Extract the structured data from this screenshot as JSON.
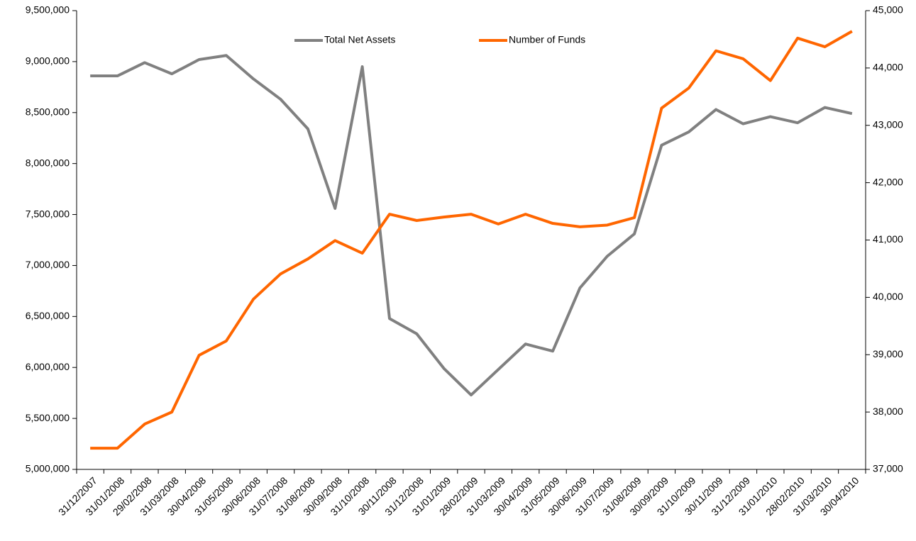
{
  "chart_data": {
    "type": "line",
    "categories": [
      "31/12/2007",
      "31/01/2008",
      "29/02/2008",
      "31/03/2008",
      "30/04/2008",
      "31/05/2008",
      "30/06/2008",
      "31/07/2008",
      "31/08/2008",
      "30/09/2008",
      "31/10/2008",
      "30/11/2008",
      "31/12/2008",
      "31/01/2009",
      "28/02/2009",
      "31/03/2009",
      "30/04/2009",
      "31/05/2009",
      "30/06/2009",
      "31/07/2009",
      "31/08/2009",
      "30/09/2009",
      "31/10/2009",
      "30/11/2009",
      "31/12/2009",
      "31/01/2010",
      "28/02/2010",
      "31/03/2010",
      "30/04/2010"
    ],
    "series": [
      {
        "name": "Total Net Assets",
        "color": "#808080",
        "values": [
          8860000,
          8860000,
          8990000,
          8880000,
          9020000,
          9060000,
          8830000,
          8630000,
          8340000,
          7560000,
          8950000,
          6480000,
          6330000,
          5990000,
          5730000,
          5980000,
          6230000,
          6160000,
          6780000,
          7090000,
          7310000,
          8180000,
          8310000,
          8530000,
          8390000,
          8460000,
          8400000,
          8550000,
          8490000
        ]
      },
      {
        "name": "Number of Funds",
        "color": "#ff6600",
        "axis": "y2",
        "values": [
          37370,
          37370,
          37790,
          38000,
          38990,
          39240,
          39970,
          40410,
          40670,
          40990,
          40770,
          41450,
          41340,
          41400,
          41450,
          41280,
          41450,
          41290,
          41230,
          41260,
          41390,
          43300,
          43650,
          44300,
          44160,
          43780,
          44520,
          44370,
          44640
        ]
      }
    ],
    "ylim": [
      5000000,
      9500000
    ],
    "yticks": [
      {
        "value": 5000000,
        "label": "5,000,000"
      },
      {
        "value": 5500000,
        "label": "5,500,000"
      },
      {
        "value": 6000000,
        "label": "6,000,000"
      },
      {
        "value": 6500000,
        "label": "6,500,000"
      },
      {
        "value": 7000000,
        "label": "7,000,000"
      },
      {
        "value": 7500000,
        "label": "7,500,000"
      },
      {
        "value": 8000000,
        "label": "8,000,000"
      },
      {
        "value": 8500000,
        "label": "8,500,000"
      },
      {
        "value": 9000000,
        "label": "9,000,000"
      },
      {
        "value": 9500000,
        "label": "9,500,000"
      }
    ],
    "y2lim": [
      37000,
      45000
    ],
    "y2ticks": [
      {
        "value": 37000,
        "label": "37,000"
      },
      {
        "value": 38000,
        "label": "38,000"
      },
      {
        "value": 39000,
        "label": "39,000"
      },
      {
        "value": 40000,
        "label": "40,000"
      },
      {
        "value": 41000,
        "label": "41,000"
      },
      {
        "value": 42000,
        "label": "42,000"
      },
      {
        "value": 43000,
        "label": "43,000"
      },
      {
        "value": 44000,
        "label": "44,000"
      },
      {
        "value": 45000,
        "label": "45,000"
      }
    ],
    "grid": false
  }
}
